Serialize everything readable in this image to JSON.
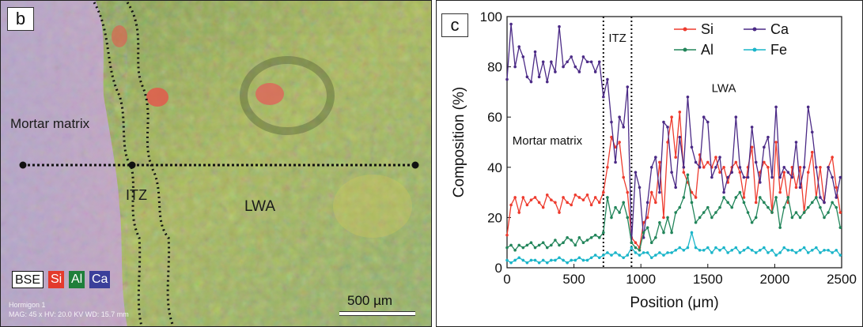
{
  "panel_b": {
    "letter": "b",
    "labels": {
      "mortar_matrix": "Mortar matrix",
      "itz": "ITZ",
      "lwa": "LWA"
    },
    "element_legend": {
      "bse": "BSE",
      "si": "Si",
      "al": "Al",
      "ca": "Ca"
    },
    "meta_line1": "Hormigon 1",
    "meta_line2": "MAG: 45 x  HV: 20.0 KV  WD: 15.7 mm",
    "scalebar": "500 µm",
    "colors": {
      "si": "#e33a2c",
      "al": "#1f7f3a",
      "ca": "#3b3f9a",
      "bse": "#ffffff"
    }
  },
  "panel_c": {
    "letter": "c",
    "annotations": {
      "itz": "ITZ",
      "lwa": "LWA",
      "mortar_matrix": "Mortar matrix"
    },
    "colors": {
      "si": "#ee3b2e",
      "ca": "#4b2a86",
      "al": "#22855a",
      "fe": "#1ab5c9"
    }
  },
  "chart_data": {
    "type": "line",
    "xlabel": "Position (μm)",
    "ylabel": "Composition (%)",
    "xlim": [
      0,
      2500
    ],
    "ylim": [
      0,
      100
    ],
    "xticks": [
      0,
      500,
      1000,
      1500,
      2000,
      2500
    ],
    "yticks": [
      0,
      20,
      40,
      60,
      80,
      100
    ],
    "vlines": [
      720,
      930
    ],
    "x": [
      0,
      30,
      60,
      90,
      120,
      150,
      180,
      210,
      240,
      270,
      300,
      330,
      360,
      390,
      420,
      450,
      480,
      510,
      540,
      570,
      600,
      630,
      660,
      690,
      720,
      750,
      780,
      810,
      840,
      870,
      900,
      930,
      960,
      990,
      1020,
      1050,
      1080,
      1110,
      1140,
      1170,
      1200,
      1230,
      1260,
      1290,
      1320,
      1350,
      1380,
      1410,
      1440,
      1470,
      1500,
      1530,
      1560,
      1590,
      1620,
      1650,
      1680,
      1710,
      1740,
      1770,
      1800,
      1830,
      1860,
      1890,
      1920,
      1950,
      1980,
      2010,
      2040,
      2070,
      2100,
      2130,
      2160,
      2190,
      2220,
      2250,
      2280,
      2310,
      2340,
      2370,
      2400,
      2430,
      2460,
      2490
    ],
    "series": [
      {
        "name": "Si",
        "values": [
          13,
          25,
          28,
          22,
          28,
          25,
          27,
          28,
          26,
          24,
          29,
          27,
          26,
          22,
          28,
          26,
          25,
          29,
          28,
          27,
          29,
          25,
          28,
          26,
          30,
          40,
          52,
          48,
          50,
          36,
          30,
          12,
          10,
          8,
          18,
          20,
          30,
          26,
          42,
          20,
          50,
          60,
          44,
          62,
          38,
          34,
          30,
          28,
          45,
          40,
          42,
          40,
          44,
          38,
          40,
          34,
          40,
          42,
          38,
          28,
          40,
          48,
          26,
          38,
          42,
          40,
          22,
          50,
          30,
          38,
          26,
          40,
          32,
          40,
          22,
          38,
          46,
          28,
          40,
          26,
          40,
          44,
          32,
          22
        ]
      },
      {
        "name": "Ca",
        "values": [
          75,
          97,
          80,
          88,
          84,
          76,
          74,
          86,
          76,
          82,
          74,
          82,
          78,
          96,
          80,
          82,
          84,
          80,
          78,
          84,
          82,
          82,
          78,
          82,
          68,
          75,
          58,
          42,
          60,
          56,
          72,
          10,
          38,
          32,
          12,
          26,
          40,
          44,
          30,
          58,
          56,
          38,
          32,
          52,
          40,
          68,
          48,
          42,
          40,
          60,
          58,
          36,
          40,
          44,
          30,
          36,
          38,
          60,
          40,
          36,
          36,
          56,
          42,
          34,
          48,
          52,
          36,
          64,
          36,
          40,
          38,
          36,
          50,
          32,
          40,
          64,
          54,
          40,
          28,
          26,
          40,
          36,
          28,
          36
        ]
      },
      {
        "name": "Al",
        "values": [
          8,
          9,
          7,
          9,
          8,
          9,
          10,
          8,
          9,
          10,
          8,
          9,
          11,
          9,
          10,
          12,
          11,
          9,
          12,
          10,
          11,
          12,
          13,
          12,
          14,
          28,
          20,
          24,
          22,
          26,
          20,
          10,
          8,
          7,
          14,
          16,
          10,
          12,
          18,
          14,
          20,
          14,
          22,
          24,
          28,
          37,
          26,
          18,
          20,
          22,
          24,
          20,
          22,
          24,
          28,
          26,
          24,
          28,
          30,
          26,
          22,
          18,
          20,
          28,
          26,
          24,
          22,
          28,
          16,
          24,
          28,
          20,
          22,
          20,
          22,
          24,
          26,
          28,
          24,
          20,
          22,
          26,
          24,
          16
        ]
      },
      {
        "name": "Fe",
        "values": [
          3,
          2,
          3,
          4,
          3,
          2,
          3,
          3,
          2,
          3,
          2,
          3,
          3,
          4,
          3,
          2,
          3,
          3,
          4,
          3,
          3,
          4,
          5,
          4,
          5,
          6,
          5,
          6,
          5,
          4,
          5,
          8,
          6,
          5,
          6,
          6,
          4,
          5,
          6,
          5,
          6,
          6,
          7,
          8,
          7,
          8,
          14,
          8,
          7,
          7,
          8,
          6,
          8,
          7,
          8,
          6,
          7,
          8,
          6,
          7,
          8,
          7,
          6,
          7,
          8,
          6,
          7,
          5,
          6,
          8,
          7,
          7,
          6,
          7,
          8,
          6,
          7,
          8,
          6,
          7,
          7,
          6,
          7,
          5
        ]
      }
    ]
  }
}
